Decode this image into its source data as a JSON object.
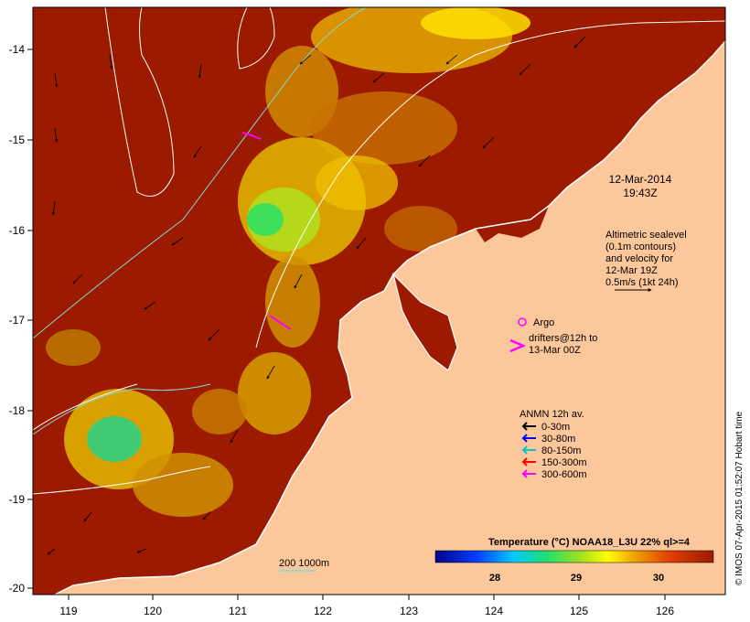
{
  "map": {
    "x_ticks": [
      "119",
      "120",
      "121",
      "122",
      "123",
      "124",
      "125",
      "126"
    ],
    "y_ticks": [
      "-14",
      "-15",
      "-16",
      "-17",
      "-18",
      "-19",
      "-20"
    ],
    "lon_range": [
      118.6,
      126.7
    ],
    "lat_range": [
      -20.1,
      -13.7
    ]
  },
  "timestamp": {
    "line1": "12-Mar-2014",
    "line2": "19:43Z"
  },
  "altimetry": {
    "lines": [
      "Altimetric sealevel",
      "(0.1m contours)",
      "and velocity for",
      "12-Mar 19Z",
      "0.5m/s (1kt 24h)"
    ]
  },
  "argo": {
    "label": "Argo",
    "drifters_line1": "drifters@12h to",
    "drifters_line2": "13-Mar 00Z"
  },
  "anmn": {
    "title": "ANMN 12h av.",
    "items": [
      {
        "label": "0-30m",
        "color": "#000000"
      },
      {
        "label": "30-80m",
        "color": "#0000ff"
      },
      {
        "label": "80-150m",
        "color": "#00c8c8"
      },
      {
        "label": "150-300m",
        "color": "#ff0000"
      },
      {
        "label": "300-600m",
        "color": "#ff00ff"
      }
    ]
  },
  "colorbar": {
    "title": "Temperature (°C) NOAA18_L3U 22% ql>=4",
    "ticks": [
      "28",
      "29",
      "30"
    ],
    "range": [
      27.3,
      30.7
    ]
  },
  "isobath": {
    "label": "200  1000m"
  },
  "credit": "© IMOS 07-Apr-2015 01:52:07 Hobart time",
  "colors": {
    "ocean_warm": "#9b1a00",
    "land": "#fcc79b",
    "coast": "#ffffff",
    "contour": "#ffffff",
    "isobath_200": "#7fd9d9"
  }
}
